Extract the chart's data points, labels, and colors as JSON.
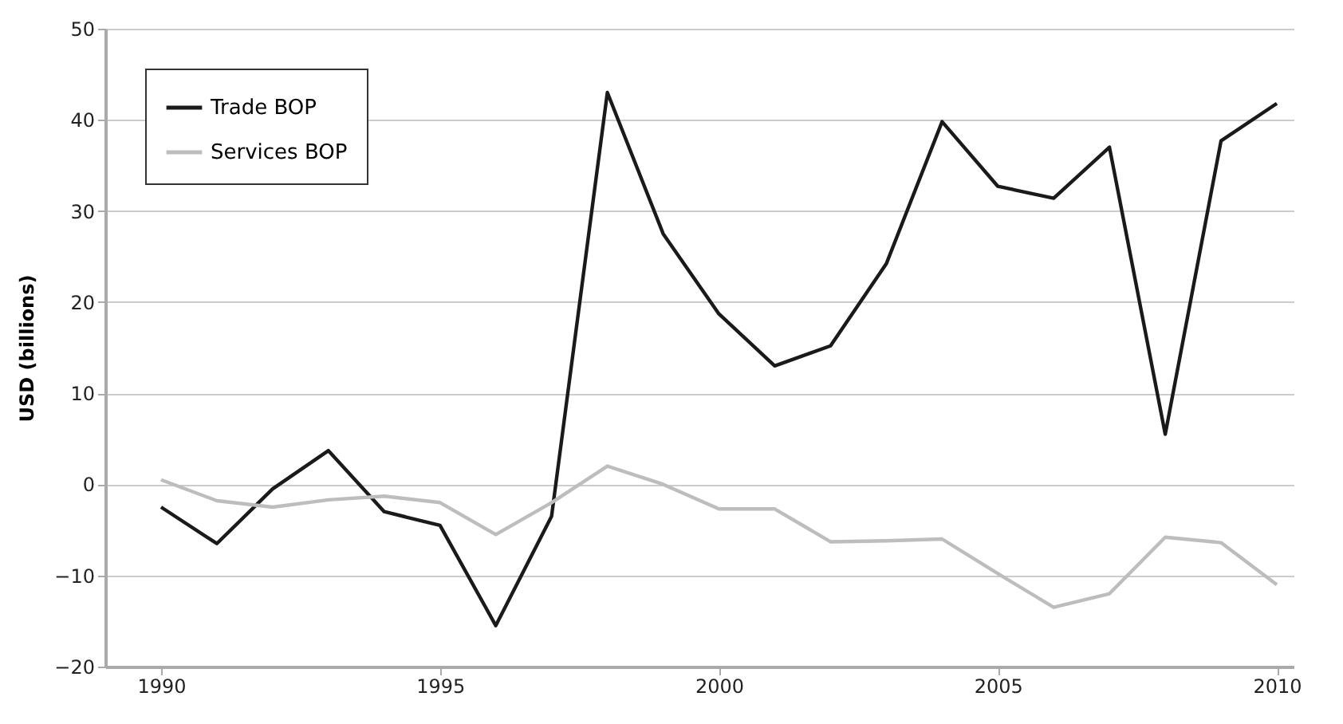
{
  "chart_data": {
    "type": "line",
    "ylabel": "USD (billions)",
    "x": [
      1990,
      1991,
      1992,
      1993,
      1994,
      1995,
      1996,
      1997,
      1998,
      1999,
      2000,
      2001,
      2002,
      2003,
      2004,
      2005,
      2006,
      2007,
      2008,
      2009,
      2010
    ],
    "series": [
      {
        "name": "Trade BOP",
        "color": "#1a1a1a",
        "values": [
          -2.5,
          -6.5,
          -0.5,
          3.7,
          -3,
          -4.5,
          -15.5,
          -3.5,
          43,
          27.5,
          18.7,
          13,
          15.2,
          24.2,
          39.8,
          32.7,
          31.4,
          37,
          5.5,
          37.7,
          41.8
        ]
      },
      {
        "name": "Services BOP",
        "color": "#bdbdbd",
        "values": [
          0.5,
          -1.8,
          -2.5,
          -1.7,
          -1.3,
          -2,
          -5.5,
          -2,
          2,
          0,
          -2.7,
          -2.7,
          -6.3,
          -6.2,
          -6,
          -9.8,
          -13.5,
          -12,
          -5.8,
          -6.4,
          -11
        ]
      }
    ],
    "xlim": [
      1989,
      2010.3
    ],
    "xticks": [
      1990,
      1995,
      2000,
      2005,
      2010
    ],
    "ylim": [
      -20,
      50
    ],
    "yticks": [
      -20,
      -10,
      0,
      10,
      20,
      30,
      40,
      50
    ],
    "grid": "y",
    "legend": "top left",
    "marker": "none",
    "line_style": "solid"
  }
}
